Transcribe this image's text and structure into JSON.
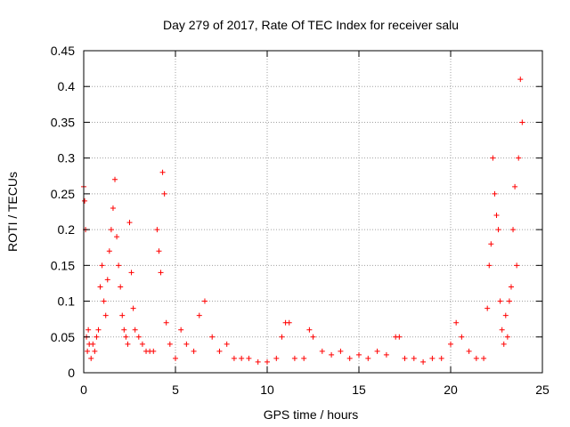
{
  "chart_data": {
    "type": "scatter",
    "title": "Day 279 of 2017, Rate Of TEC Index for receiver salu",
    "xlabel": "GPS time / hours",
    "ylabel": "ROTI / TECUs",
    "xlim": [
      0,
      25
    ],
    "ylim": [
      0,
      0.45
    ],
    "xticks": [
      0,
      5,
      10,
      15,
      20,
      25
    ],
    "yticks": [
      0,
      0.05,
      0.1,
      0.15,
      0.2,
      0.25,
      0.3,
      0.35,
      0.4,
      0.45
    ],
    "xtick_labels": [
      "0",
      "5",
      "10",
      "15",
      "20",
      "25"
    ],
    "ytick_labels": [
      "0",
      "0.05",
      "0.1",
      "0.15",
      "0.2",
      "0.25",
      "0.3",
      "0.35",
      "0.4",
      "0.45"
    ],
    "grid": true,
    "marker": "+",
    "color": "#ff0000",
    "series": [
      {
        "name": "ROTI",
        "x": [
          0.0,
          0.05,
          0.1,
          0.15,
          0.2,
          0.25,
          0.3,
          0.4,
          0.5,
          0.6,
          0.7,
          0.8,
          0.9,
          1.0,
          1.1,
          1.2,
          1.3,
          1.4,
          1.5,
          1.6,
          1.7,
          1.8,
          1.9,
          2.0,
          2.1,
          2.2,
          2.3,
          2.4,
          2.5,
          2.6,
          2.7,
          2.8,
          3.0,
          3.2,
          3.4,
          3.6,
          3.8,
          4.0,
          4.1,
          4.2,
          4.3,
          4.4,
          4.5,
          4.7,
          5.0,
          5.3,
          5.6,
          6.0,
          6.3,
          6.6,
          7.0,
          7.4,
          7.8,
          8.2,
          8.6,
          9.0,
          9.5,
          10.0,
          10.5,
          10.8,
          11.0,
          11.2,
          11.5,
          12.0,
          12.3,
          12.5,
          13.0,
          13.5,
          14.0,
          14.5,
          15.0,
          15.5,
          16.0,
          16.5,
          17.0,
          17.2,
          17.5,
          18.0,
          18.5,
          19.0,
          19.5,
          20.0,
          20.3,
          20.6,
          21.0,
          21.4,
          21.8,
          22.0,
          22.1,
          22.2,
          22.3,
          22.4,
          22.5,
          22.6,
          22.7,
          22.8,
          22.9,
          23.0,
          23.1,
          23.2,
          23.3,
          23.4,
          23.5,
          23.6,
          23.7,
          23.8,
          23.9
        ],
        "y": [
          0.26,
          0.24,
          0.2,
          0.05,
          0.03,
          0.06,
          0.04,
          0.02,
          0.04,
          0.03,
          0.05,
          0.06,
          0.12,
          0.15,
          0.1,
          0.08,
          0.13,
          0.17,
          0.2,
          0.23,
          0.27,
          0.19,
          0.15,
          0.12,
          0.08,
          0.06,
          0.05,
          0.04,
          0.21,
          0.14,
          0.09,
          0.06,
          0.05,
          0.04,
          0.03,
          0.03,
          0.03,
          0.2,
          0.17,
          0.14,
          0.28,
          0.25,
          0.07,
          0.04,
          0.02,
          0.06,
          0.04,
          0.03,
          0.08,
          0.1,
          0.05,
          0.03,
          0.04,
          0.02,
          0.02,
          0.02,
          0.015,
          0.015,
          0.02,
          0.05,
          0.07,
          0.07,
          0.02,
          0.02,
          0.06,
          0.05,
          0.03,
          0.025,
          0.03,
          0.02,
          0.025,
          0.02,
          0.03,
          0.025,
          0.05,
          0.05,
          0.02,
          0.02,
          0.015,
          0.02,
          0.02,
          0.04,
          0.07,
          0.05,
          0.03,
          0.02,
          0.02,
          0.09,
          0.15,
          0.18,
          0.3,
          0.25,
          0.22,
          0.2,
          0.1,
          0.06,
          0.04,
          0.08,
          0.05,
          0.1,
          0.12,
          0.2,
          0.26,
          0.15,
          0.3,
          0.41,
          0.35
        ]
      }
    ]
  }
}
